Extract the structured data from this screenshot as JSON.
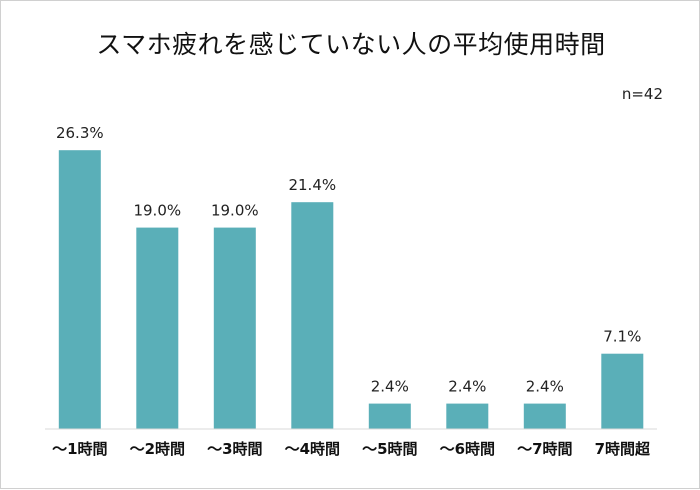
{
  "chart_data": {
    "type": "bar",
    "title": "スマホ疲れを感じていない人の平均使用時間",
    "note": "n=42",
    "categories": [
      "～1時間",
      "～2時間",
      "～3時間",
      "～4時間",
      "～5時間",
      "～6時間",
      "～7時間",
      "7時間超"
    ],
    "values": [
      26.3,
      19.0,
      19.0,
      21.4,
      2.4,
      2.4,
      2.4,
      7.1
    ],
    "value_labels": [
      "26.3%",
      "19.0%",
      "19.0%",
      "21.4%",
      "2.4%",
      "2.4%",
      "2.4%",
      "7.1%"
    ],
    "xlabel": "",
    "ylabel": "",
    "ylim": [
      0,
      30
    ],
    "grid": false,
    "bar_color": "#5aafb8",
    "axis_color": "#d9d9d9"
  }
}
